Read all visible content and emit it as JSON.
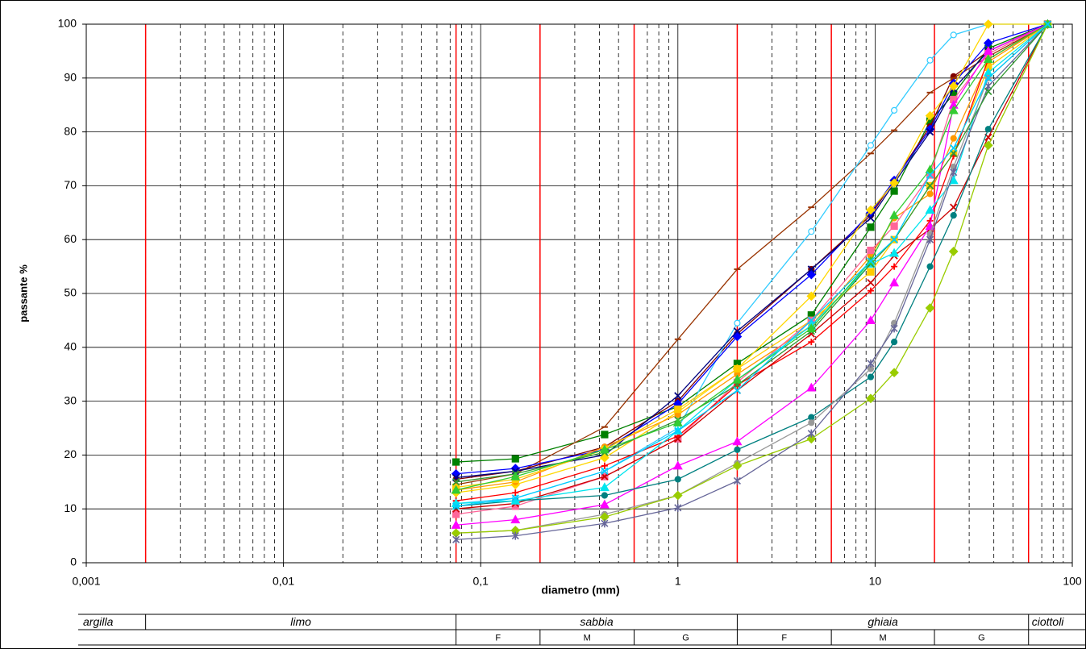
{
  "chart_data": {
    "type": "line",
    "x_label": "diametro (mm)",
    "y_label": "passante %",
    "log_x": true,
    "grid": true,
    "xlim": [
      0.001,
      100
    ],
    "ylim": [
      0,
      100
    ],
    "xticks": [
      {
        "value": 0.001,
        "label": "0,001"
      },
      {
        "value": 0.01,
        "label": "0,01"
      },
      {
        "value": 0.1,
        "label": "0,1"
      },
      1,
      10,
      100
    ],
    "yticks": [
      0,
      10,
      20,
      30,
      40,
      50,
      60,
      70,
      80,
      90,
      100
    ],
    "boundaries": [
      0.002,
      0.075,
      0.2,
      0.6,
      2,
      6,
      20,
      60
    ],
    "boundary_color": "#ff0000",
    "classes": [
      "argilla",
      "limo",
      "sabbia",
      "ghiaia",
      "ciottoli"
    ],
    "subclasses": [
      "F",
      "M",
      "G",
      "F",
      "M",
      "G"
    ],
    "x": [
      0.075,
      0.15,
      0.425,
      1,
      2,
      4.75,
      9.5,
      12.5,
      19,
      25,
      37.5,
      75
    ],
    "series": [
      {
        "color": "#008000",
        "marker": "square",
        "values": [
          18.7,
          19.3,
          23.8,
          29,
          37,
          46,
          62.3,
          69,
          82,
          87,
          95.5,
          100
        ]
      },
      {
        "color": "#800000",
        "marker": "circle",
        "values": [
          15.5,
          17,
          21.5,
          30,
          42.5,
          54.5,
          64.5,
          71,
          81,
          90.3,
          95,
          100
        ]
      },
      {
        "color": "#993300",
        "marker": "dash",
        "values": [
          14.5,
          16.5,
          25.2,
          41.5,
          54.5,
          66,
          76,
          80.3,
          87.3,
          90,
          94,
          100
        ]
      },
      {
        "color": "#33ccff",
        "marker": "circle-open",
        "values": [
          11,
          12,
          17,
          25,
          44.5,
          61.5,
          77.5,
          84,
          93.3,
          98,
          100,
          100
        ]
      },
      {
        "color": "#0000ff",
        "marker": "diamond",
        "values": [
          16.5,
          17.5,
          21,
          29.5,
          42,
          53.5,
          65,
          71,
          80.5,
          89,
          96.5,
          100
        ]
      },
      {
        "color": "#000080",
        "marker": "x",
        "values": [
          15.8,
          17,
          20,
          31,
          43,
          54.5,
          64,
          70.5,
          80,
          88,
          95,
          100
        ]
      },
      {
        "color": "#ffd700",
        "marker": "diamond",
        "values": [
          13,
          14.5,
          19.5,
          28,
          36,
          49.5,
          65.5,
          70.5,
          83,
          88.5,
          100,
          100
        ]
      },
      {
        "color": "#ff9900",
        "marker": "circle",
        "values": [
          13.5,
          15,
          21.5,
          27.5,
          35,
          44,
          57,
          64,
          68.5,
          78.8,
          93,
          100
        ]
      },
      {
        "color": "#ffcc00",
        "marker": "square",
        "values": [
          14,
          15.5,
          21,
          28.5,
          36,
          45,
          54,
          60,
          70,
          76,
          92,
          100
        ]
      },
      {
        "color": "#ff6699",
        "marker": "square",
        "values": [
          9,
          10.5,
          16,
          23,
          33.5,
          45,
          58,
          62.5,
          72,
          86,
          94.5,
          100
        ]
      },
      {
        "color": "#ff0000",
        "marker": "plus",
        "values": [
          11.5,
          13,
          18,
          23.5,
          33,
          41,
          50.5,
          55,
          63.5,
          75.5,
          93.5,
          100
        ]
      },
      {
        "color": "#cc0000",
        "marker": "x",
        "values": [
          10,
          11,
          16,
          23,
          32,
          42.5,
          52,
          57,
          62,
          66,
          79,
          100
        ]
      },
      {
        "color": "#ff00ff",
        "marker": "triangle",
        "values": [
          7,
          8,
          10.8,
          18,
          22.5,
          32.5,
          45,
          52,
          62.5,
          85,
          95,
          100
        ]
      },
      {
        "color": "#008080",
        "marker": "circle",
        "values": [
          10.5,
          11.5,
          12.5,
          15.5,
          21,
          27,
          34.5,
          41,
          55,
          64.5,
          80.5,
          100
        ]
      },
      {
        "color": "#00e5ee",
        "marker": "triangle",
        "values": [
          11,
          11.5,
          14,
          24.5,
          34,
          44,
          55.5,
          57.5,
          65.5,
          71,
          91,
          100
        ]
      },
      {
        "color": "#999999",
        "marker": "circle",
        "values": [
          5.5,
          6,
          9,
          12.5,
          18.5,
          26,
          36,
          44.5,
          61,
          73.5,
          90,
          100
        ]
      },
      {
        "color": "#99cc00",
        "marker": "diamond",
        "values": [
          5.5,
          6,
          8.5,
          12.5,
          18,
          23,
          30.5,
          35.3,
          47.3,
          57.8,
          77.5,
          100
        ]
      },
      {
        "color": "#666699",
        "marker": "star",
        "values": [
          4.3,
          5,
          7.3,
          10.2,
          15.2,
          24,
          37,
          43.5,
          60,
          72.5,
          88.5,
          100
        ]
      },
      {
        "color": "#339933",
        "marker": "x",
        "values": [
          15,
          16.5,
          20.5,
          26.5,
          33,
          43,
          55.5,
          60,
          70,
          76,
          87.5,
          100
        ]
      },
      {
        "color": "#33cc33",
        "marker": "triangle",
        "values": [
          13.5,
          16,
          21,
          26,
          34,
          43.5,
          56,
          64.5,
          73,
          84,
          93.5,
          100
        ]
      },
      {
        "color": "#00ccff",
        "marker": "x",
        "values": [
          10.5,
          12,
          17,
          24.5,
          32,
          45,
          56,
          60,
          72,
          77,
          90,
          100
        ]
      }
    ]
  }
}
